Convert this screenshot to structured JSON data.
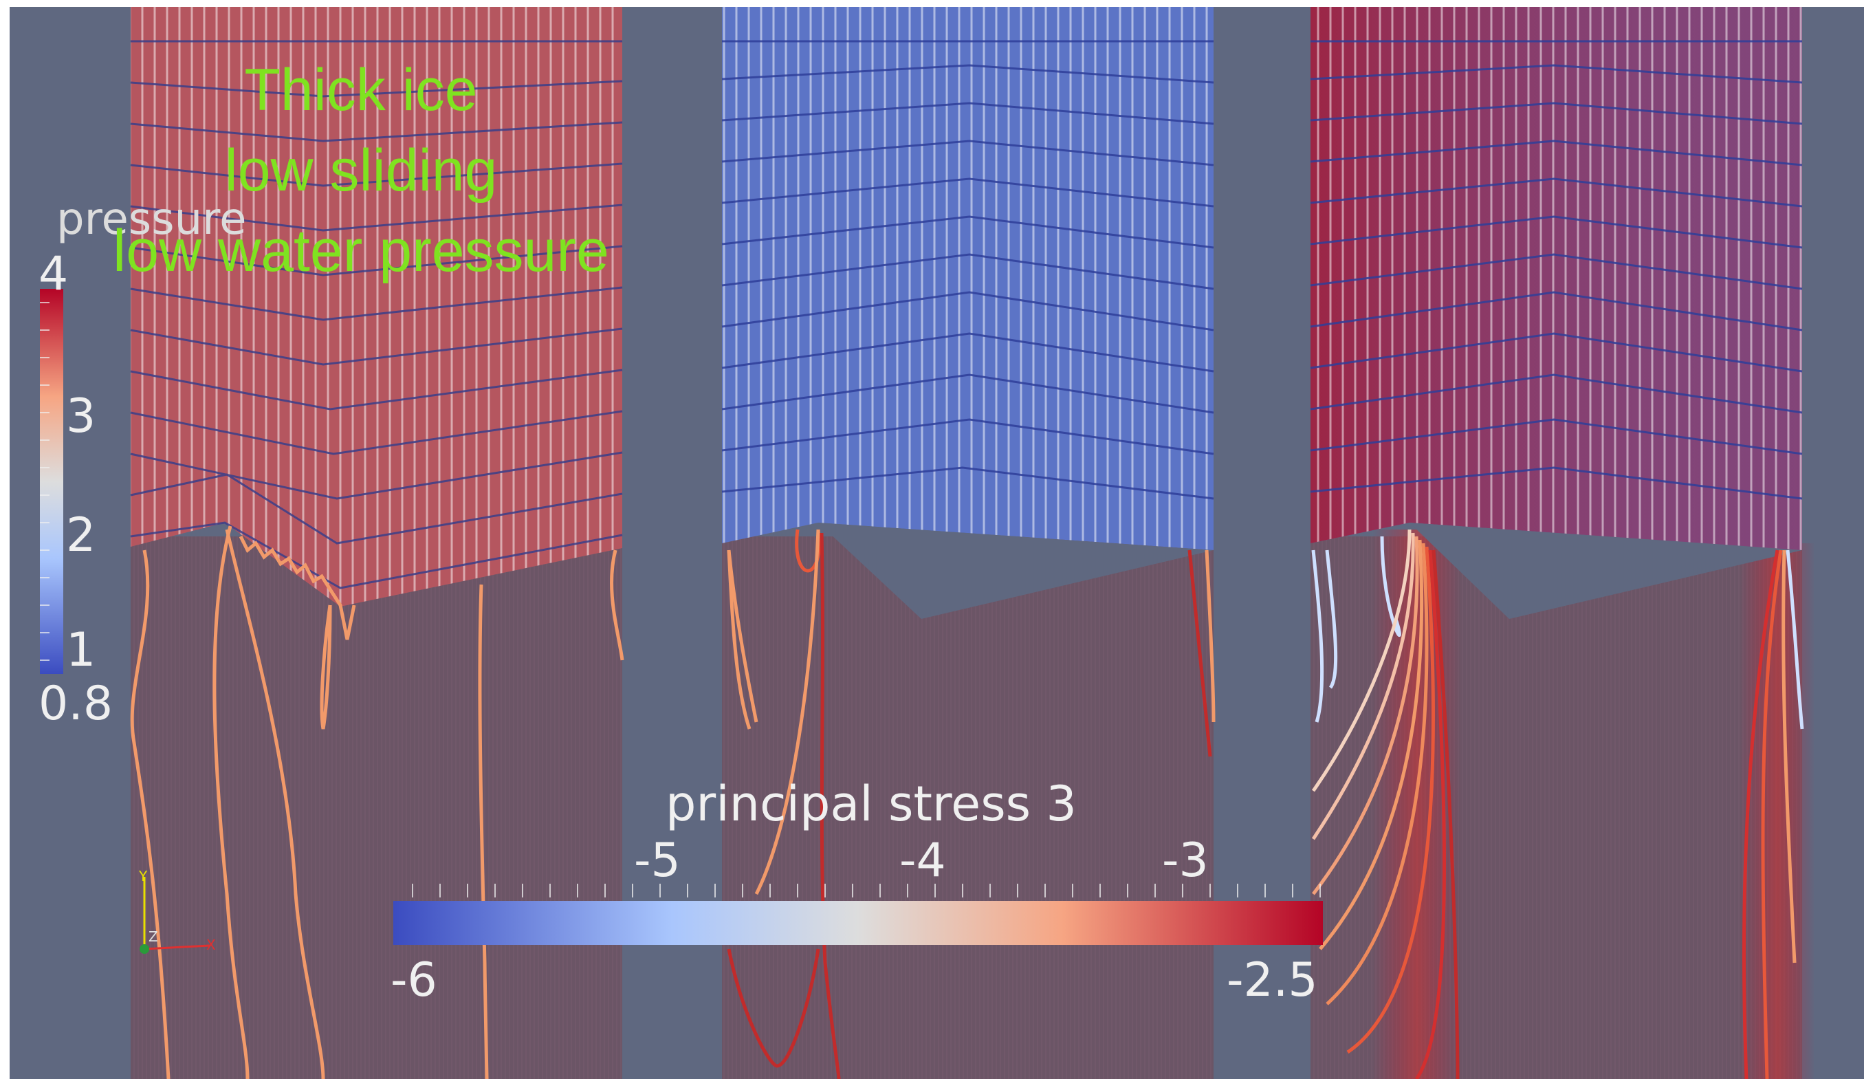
{
  "annotation": {
    "lines": [
      "Thick ice",
      "low sliding",
      "low water pressure"
    ],
    "color": "#7fe320"
  },
  "pressure_legend": {
    "title": "pressure",
    "ticks": [
      "4",
      "3",
      "2",
      "1",
      "0.8"
    ],
    "colormap": [
      "#3b4cc0",
      "#a9c6fd",
      "#dddddd",
      "#f6a583",
      "#b40426"
    ]
  },
  "stress_legend": {
    "title": "principal stress 3",
    "top_ticks": [
      "-5",
      "-4",
      "-3"
    ],
    "bottom_ticks": [
      "-6",
      "-2.5"
    ],
    "colormap": [
      "#3b4cc0",
      "#a9c6fd",
      "#dddddd",
      "#f6a583",
      "#b40426"
    ]
  },
  "axes_glyph": {
    "y": "Y",
    "z": "Z",
    "x": "X"
  },
  "panels": [
    {
      "name": "left",
      "ice_color": "#b8545c"
    },
    {
      "name": "middle",
      "ice_color": "#5a73c7"
    },
    {
      "name": "right",
      "ice_color": "#5a73c7"
    }
  ],
  "colors": {
    "background": "#5f6880",
    "gap": "#ffffff",
    "bed": "#6b5566"
  }
}
